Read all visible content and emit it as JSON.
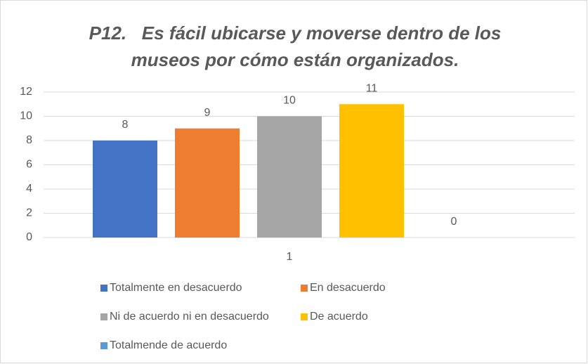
{
  "chart_data": {
    "type": "bar",
    "title": "P12.   Es fácil ubicarse y moverse dentro de los museos por cómo están organizados.",
    "categories": [
      "1"
    ],
    "series": [
      {
        "name": "Totalmente en desacuerdo",
        "color": "#4472c4",
        "values": [
          8
        ]
      },
      {
        "name": "En desacuerdo",
        "color": "#ed7d31",
        "values": [
          9
        ]
      },
      {
        "name": "Ni de acuerdo ni en desacuerdo",
        "color": "#a5a5a5",
        "values": [
          10
        ]
      },
      {
        "name": "De acuerdo",
        "color": "#ffc000",
        "values": [
          11
        ]
      },
      {
        "name": "Totalmende de acuerdo",
        "color": "#5b9bd5",
        "values": [
          0
        ]
      }
    ],
    "ylim": [
      0,
      12
    ],
    "yticks": [
      0,
      2,
      4,
      6,
      8,
      10,
      12
    ],
    "grid": true,
    "legend": "bottom"
  }
}
